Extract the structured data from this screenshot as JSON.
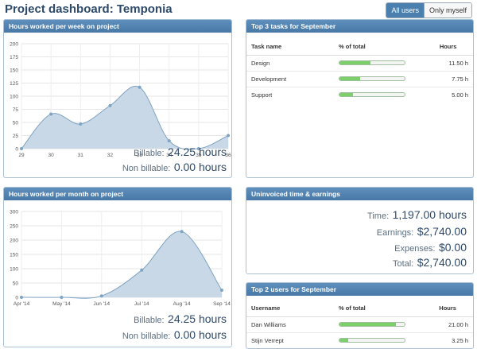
{
  "header": {
    "title": "Project dashboard: Temponia",
    "toggle_all": "All users",
    "toggle_mine": "Only myself"
  },
  "weekly": {
    "title": "Hours worked per week on project",
    "billable_label": "Billable:",
    "billable_value": "24.25 hours",
    "nonbillable_label": "Non billable:",
    "nonbillable_value": "0.00 hours"
  },
  "monthly": {
    "title": "Hours worked per month on project",
    "billable_label": "Billable:",
    "billable_value": "24.25 hours",
    "nonbillable_label": "Non billable:",
    "nonbillable_value": "0.00 hours"
  },
  "tasks": {
    "title": "Top 3 tasks for September",
    "col_name": "Task name",
    "col_pct": "% of total",
    "col_hours": "Hours",
    "rows": [
      {
        "name": "Design",
        "pct": 0.47,
        "hours": "11.50 h"
      },
      {
        "name": "Development",
        "pct": 0.32,
        "hours": "7.75 h"
      },
      {
        "name": "Support",
        "pct": 0.21,
        "hours": "5.00 h"
      }
    ]
  },
  "earnings": {
    "title": "Uninvoiced time & earnings",
    "time_label": "Time:",
    "time_value": "1,197.00 hours",
    "earnings_label": "Earnings:",
    "earnings_value": "$2,740.00",
    "expenses_label": "Expenses:",
    "expenses_value": "$0.00",
    "total_label": "Total:",
    "total_value": "$2,740.00"
  },
  "users": {
    "title": "Top 2 users for September",
    "col_name": "Username",
    "col_pct": "% of total",
    "col_hours": "Hours",
    "rows": [
      {
        "name": "Dan Williams",
        "pct": 0.87,
        "hours": "21.00 h"
      },
      {
        "name": "Stijn Verrept",
        "pct": 0.13,
        "hours": "3.25 h"
      }
    ]
  },
  "chart_data": [
    {
      "type": "area",
      "x": [
        "29",
        "30",
        "31",
        "32",
        "33",
        "34",
        "35",
        "36"
      ],
      "values": [
        0,
        66,
        47,
        82,
        117,
        15,
        0,
        25
      ],
      "yticks": [
        0,
        25,
        50,
        75,
        100,
        125,
        150,
        175,
        200
      ],
      "ylim": [
        0,
        200
      ],
      "grid": true,
      "color": "#7fa3c3",
      "fill": "#c8d8e6"
    },
    {
      "type": "area",
      "x": [
        "Apr '14",
        "May '14",
        "Jun '14",
        "Jul '14",
        "Aug '14",
        "Sep '14"
      ],
      "values": [
        0,
        0,
        5,
        95,
        230,
        25
      ],
      "yticks": [
        0,
        50,
        100,
        150,
        200,
        250,
        300
      ],
      "ylim": [
        0,
        300
      ],
      "grid": true,
      "color": "#7fa3c3",
      "fill": "#c8d8e6"
    }
  ]
}
